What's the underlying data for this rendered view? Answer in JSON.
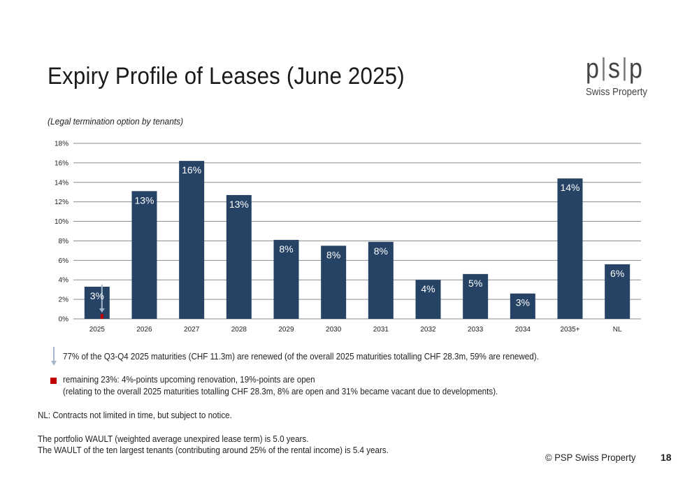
{
  "header": {
    "title": "Expiry Profile of Leases (June 2025)",
    "subtitle": "(Legal termination option by tenants)"
  },
  "logo": {
    "mark_parts": [
      "p",
      "s",
      "p"
    ],
    "tagline": "Swiss Property"
  },
  "colors": {
    "bar": "#264365",
    "highlight": "#c00000",
    "grid": "#8c8c8c",
    "arrow": "#a6b8cc"
  },
  "chart_data": {
    "type": "bar",
    "title": "",
    "xlabel": "",
    "ylabel": "",
    "categories": [
      "2025",
      "2026",
      "2027",
      "2028",
      "2029",
      "2030",
      "2031",
      "2032",
      "2033",
      "2034",
      "2035+",
      "NL"
    ],
    "values": [
      3.3,
      13.1,
      16.2,
      12.7,
      8.1,
      7.5,
      7.9,
      4.0,
      4.6,
      2.6,
      14.4,
      5.6
    ],
    "data_labels": [
      "3%",
      "13%",
      "16%",
      "13%",
      "8%",
      "8%",
      "8%",
      "4%",
      "5%",
      "3%",
      "14%",
      "6%"
    ],
    "ylim": [
      0,
      18
    ],
    "yticks": [
      0,
      2,
      4,
      6,
      8,
      10,
      12,
      14,
      16,
      18
    ],
    "ytick_labels": [
      "0%",
      "2%",
      "4%",
      "6%",
      "8%",
      "10%",
      "12%",
      "14%",
      "16%",
      "18%"
    ],
    "grid": true,
    "legend": "none",
    "highlight": {
      "category": "2025",
      "value": 0.5,
      "color": "#c00000"
    }
  },
  "notes": {
    "arrow_icon": "down-arrow-icon",
    "renewed": "77% of the Q3-Q4 2025 maturities (CHF 11.3m) are renewed (of the overall 2025 maturities totalling CHF 28.3m, 59% are renewed).",
    "marker_icon": "red-square-icon",
    "remaining": "remaining 23%: 4%-points upcoming renovation, 19%-points are open",
    "remaining_detail": "(relating to the overall 2025 maturities totalling CHF 28.3m, 8% are open and 31% became vacant due to developments).",
    "nl": "NL: Contracts not limited in time, but subject to notice.",
    "wault": "The portfolio WAULT (weighted average unexpired lease term) is 5.0 years.",
    "wault_top10": "The WAULT of the ten largest tenants (contributing around 25% of the rental income) is 5.4 years."
  },
  "footer": {
    "copyright": "© PSP Swiss Property",
    "page_number": "18"
  }
}
